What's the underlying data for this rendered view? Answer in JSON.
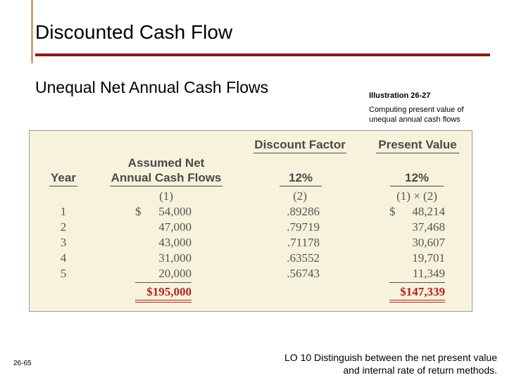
{
  "slide": {
    "title": "Discounted Cash Flow",
    "subtitle": "Unequal Net Annual Cash Flows",
    "illustration_title": "Illustration 26-27",
    "illustration_caption": "Computing present value of unequal annual cash flows",
    "page_number": "26-65",
    "lo_line1": "LO 10  Distinguish between the net present value",
    "lo_line2": "and internal rate of return methods."
  },
  "table": {
    "group_headers": {
      "discount": "Discount Factor",
      "present": "Present Value"
    },
    "headers": {
      "year": "Year",
      "cash_line1": "Assumed Net",
      "cash_line2": "Annual Cash Flows",
      "rate_discount": "12%",
      "rate_present": "12%"
    },
    "col_numbers": {
      "cash": "(1)",
      "discount": "(2)",
      "present": "(1) × (2)"
    },
    "rows": [
      {
        "year": "1",
        "cash_sym": "$",
        "cash": "54,000",
        "factor": ".89286",
        "pv_sym": "$",
        "pv": "48,214"
      },
      {
        "year": "2",
        "cash_sym": "",
        "cash": "47,000",
        "factor": ".79719",
        "pv_sym": "",
        "pv": "37,468"
      },
      {
        "year": "3",
        "cash_sym": "",
        "cash": "43,000",
        "factor": ".71178",
        "pv_sym": "",
        "pv": "30,607"
      },
      {
        "year": "4",
        "cash_sym": "",
        "cash": "31,000",
        "factor": ".63552",
        "pv_sym": "",
        "pv": "19,701"
      },
      {
        "year": "5",
        "cash_sym": "",
        "cash": "20,000",
        "factor": ".56743",
        "pv_sym": "",
        "pv": "11,349"
      }
    ],
    "totals": {
      "cash": "$195,000",
      "pv": "$147,339"
    }
  }
}
